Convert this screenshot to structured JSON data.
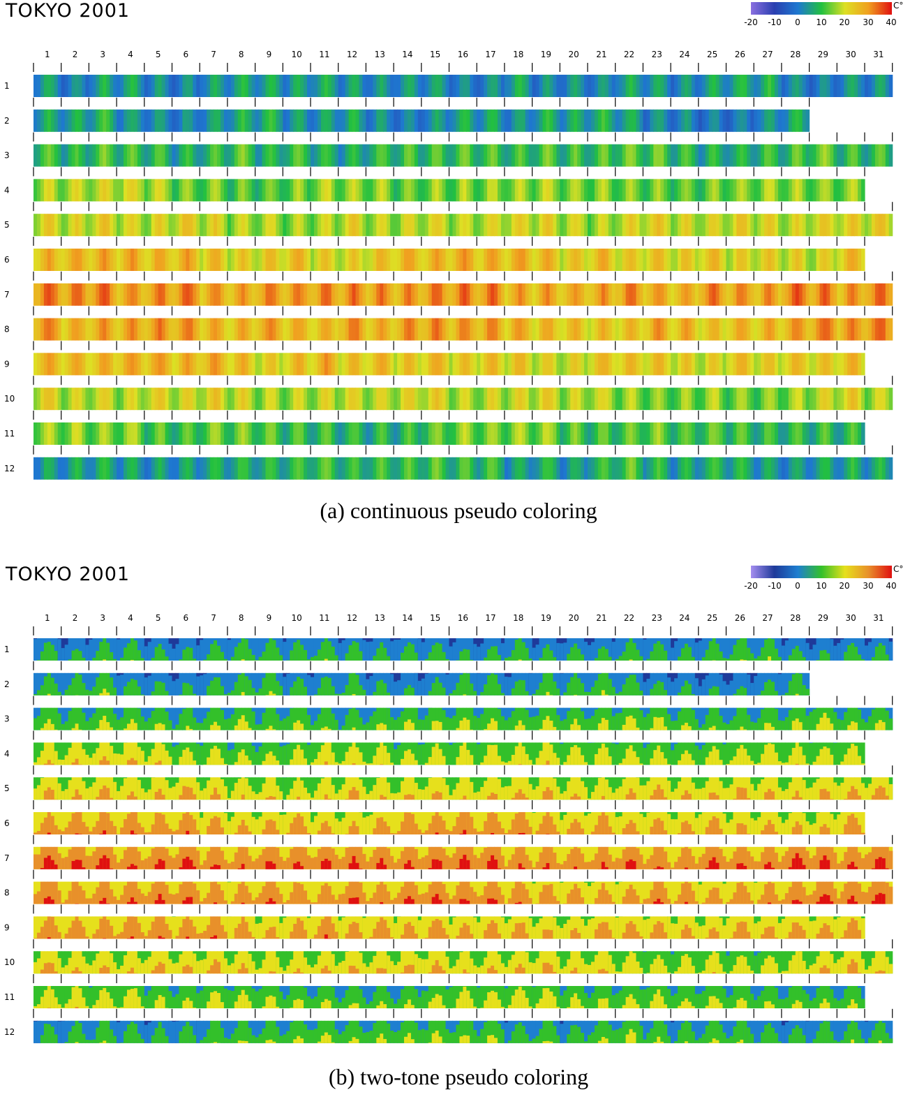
{
  "panels": [
    {
      "title": "TOKYO 2001",
      "caption": "(a) continuous pseudo coloring",
      "mode": "continuous"
    },
    {
      "title": "TOKYO 2001",
      "caption": "(b) two-tone pseudo coloring",
      "mode": "two-tone"
    }
  ],
  "legend": {
    "unit": "C°",
    "ticks": [
      "-20",
      "-10",
      "0",
      "10",
      "20",
      "30",
      "40"
    ],
    "continuous_colors": [
      "#8a6fe0",
      "#2a3fb0",
      "#1e78d0",
      "#22c040",
      "#dde024",
      "#f0a020",
      "#e01010"
    ],
    "two_tone_colors": [
      "#a58ef0",
      "#1e3a9a",
      "#1e7fd0",
      "#33c02a",
      "#e6e01c",
      "#e8902a",
      "#e01010"
    ]
  },
  "chart_data": [
    {
      "type": "heatmap",
      "title": "TOKYO 2001",
      "xlabel": "",
      "ylabel": "",
      "x_categories": [
        "1",
        "2",
        "3",
        "4",
        "5",
        "6",
        "7",
        "8",
        "9",
        "10",
        "11",
        "12",
        "13",
        "14",
        "15",
        "16",
        "17",
        "18",
        "19",
        "20",
        "21",
        "22",
        "23",
        "24",
        "25",
        "26",
        "27",
        "28",
        "29",
        "30",
        "31"
      ],
      "y_categories": [
        "1",
        "2",
        "3",
        "4",
        "5",
        "6",
        "7",
        "8",
        "9",
        "10",
        "11",
        "12"
      ],
      "days_in_month": [
        31,
        28,
        31,
        30,
        31,
        30,
        31,
        31,
        30,
        31,
        30,
        31
      ],
      "monthly_mean_temp": [
        3,
        4,
        9,
        15,
        19,
        23,
        29,
        27,
        23,
        18,
        12,
        7
      ],
      "daily_temp_swing": 5,
      "color_range": [
        -20,
        40
      ],
      "coloring": "continuous",
      "legend": "top-right"
    },
    {
      "type": "heatmap",
      "title": "TOKYO 2001",
      "xlabel": "",
      "ylabel": "",
      "x_categories": [
        "1",
        "2",
        "3",
        "4",
        "5",
        "6",
        "7",
        "8",
        "9",
        "10",
        "11",
        "12",
        "13",
        "14",
        "15",
        "16",
        "17",
        "18",
        "19",
        "20",
        "21",
        "22",
        "23",
        "24",
        "25",
        "26",
        "27",
        "28",
        "29",
        "30",
        "31"
      ],
      "y_categories": [
        "1",
        "2",
        "3",
        "4",
        "5",
        "6",
        "7",
        "8",
        "9",
        "10",
        "11",
        "12"
      ],
      "days_in_month": [
        31,
        28,
        31,
        30,
        31,
        30,
        31,
        31,
        30,
        31,
        30,
        31
      ],
      "monthly_mean_temp": [
        3,
        4,
        9,
        15,
        19,
        23,
        29,
        27,
        23,
        18,
        12,
        7
      ],
      "daily_temp_swing": 5,
      "color_range": [
        -20,
        40
      ],
      "coloring": "two-tone",
      "legend": "top-right"
    }
  ]
}
